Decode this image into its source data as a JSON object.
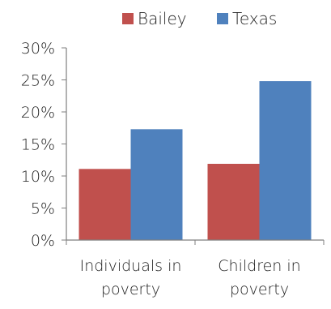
{
  "chart_data": {
    "type": "bar",
    "categories": [
      [
        "Individuals in",
        "poverty"
      ],
      [
        "Children in",
        "poverty"
      ]
    ],
    "series": [
      {
        "name": "Bailey",
        "values": [
          11.1,
          11.9
        ],
        "color": "#c0504d"
      },
      {
        "name": "Texas",
        "values": [
          17.3,
          24.8
        ],
        "color": "#4f81bd"
      }
    ],
    "ylim": [
      0,
      30
    ],
    "yticks": [
      0,
      5,
      10,
      15,
      20,
      25,
      30
    ],
    "ytick_suffix": "%",
    "legend_position": "top",
    "grid": false
  }
}
